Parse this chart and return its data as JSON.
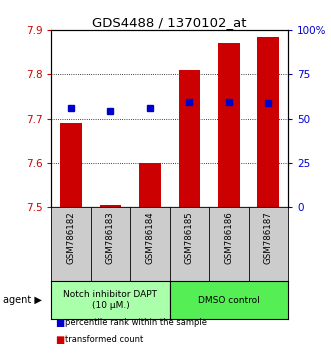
{
  "title": "GDS4488 / 1370102_at",
  "samples": [
    "GSM786182",
    "GSM786183",
    "GSM786184",
    "GSM786185",
    "GSM786186",
    "GSM786187"
  ],
  "bar_bottoms": [
    7.5,
    7.5,
    7.5,
    7.5,
    7.5,
    7.5
  ],
  "bar_tops": [
    7.69,
    7.505,
    7.6,
    7.81,
    7.87,
    7.885
  ],
  "percentile_values": [
    7.725,
    7.718,
    7.724,
    7.737,
    7.737,
    7.735
  ],
  "bar_color": "#cc0000",
  "percentile_color": "#0000cc",
  "ylim_left": [
    7.5,
    7.9
  ],
  "ylim_right": [
    0,
    100
  ],
  "yticks_left": [
    7.5,
    7.6,
    7.7,
    7.8,
    7.9
  ],
  "yticks_right": [
    0,
    25,
    50,
    75,
    100
  ],
  "ytick_labels_right": [
    "0",
    "25",
    "50",
    "75",
    "100%"
  ],
  "grid_lines": [
    7.6,
    7.7,
    7.8
  ],
  "bar_width": 0.55,
  "groups": [
    {
      "label": "Notch inhibitor DAPT\n(10 μM.)",
      "samples_idx": [
        0,
        1,
        2
      ],
      "color": "#aaffaa"
    },
    {
      "label": "DMSO control",
      "samples_idx": [
        3,
        4,
        5
      ],
      "color": "#55ee55"
    }
  ],
  "agent_label": "agent",
  "legend_items": [
    {
      "color": "#cc0000",
      "label": "transformed count"
    },
    {
      "color": "#0000cc",
      "label": "percentile rank within the sample"
    }
  ],
  "left_tick_color": "#cc0000",
  "right_tick_color": "#0000cc",
  "sample_box_color": "#cccccc",
  "spine_color": "#000000"
}
